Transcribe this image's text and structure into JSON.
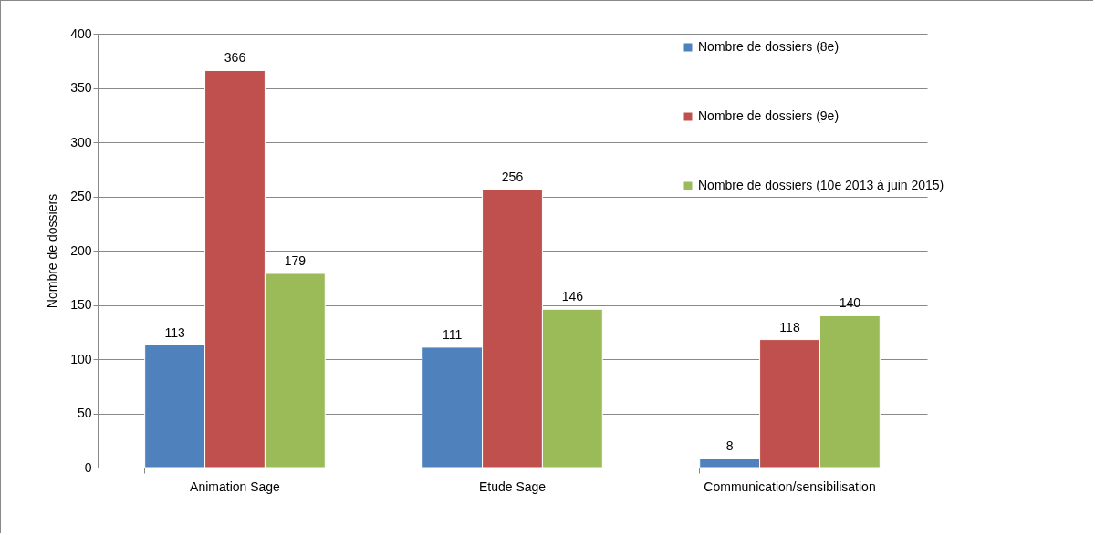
{
  "chart_data": {
    "type": "bar",
    "ylabel": "Nombre de dossiers",
    "categories": [
      "Animation Sage",
      "Etude Sage",
      "Communication/sensibilisation"
    ],
    "series": [
      {
        "name": "Nombre de dossiers (8e)",
        "color": "#4f81bd",
        "values": [
          113,
          111,
          8
        ]
      },
      {
        "name": "Nombre de dossiers (9e)",
        "color": "#c0504d",
        "values": [
          366,
          256,
          118
        ]
      },
      {
        "name": "Nombre de dossiers (10e 2013 à juin 2015)",
        "color": "#9bbb59",
        "values": [
          179,
          146,
          140
        ]
      }
    ],
    "ylim": [
      0,
      400
    ],
    "yticks": [
      0,
      50,
      100,
      150,
      200,
      250,
      300,
      350,
      400
    ],
    "grid": "y",
    "legend": "top right",
    "data_labels": true
  }
}
